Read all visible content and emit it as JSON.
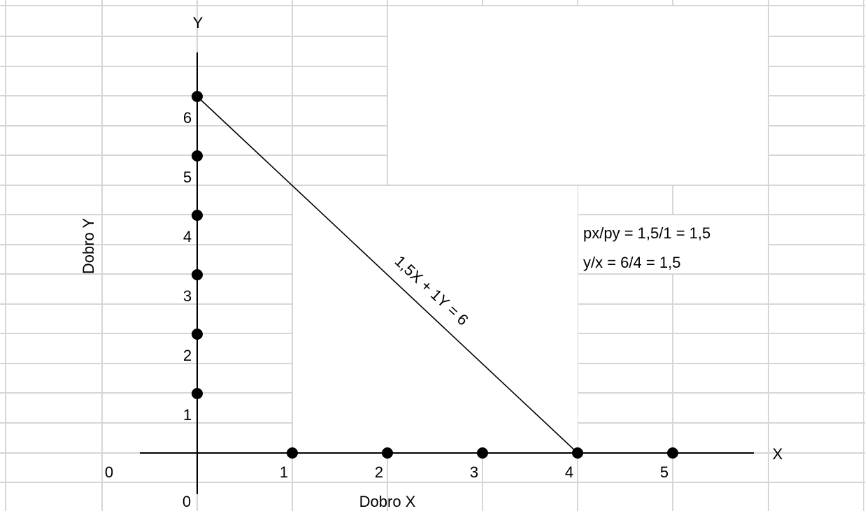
{
  "colors": {
    "grid": "#d6d6d6",
    "axis": "#000000",
    "line": "#000000",
    "point": "#000000",
    "background": "#ffffff"
  },
  "chart_data": {
    "type": "scatter",
    "title": "",
    "xlabel": "Dobro X",
    "ylabel": "Dobro Y",
    "x_axis_letter": "X",
    "y_axis_letter": "Y",
    "origin_labels": [
      "0",
      "0"
    ],
    "x_ticks": [
      "1",
      "2",
      "3",
      "4",
      "5"
    ],
    "y_ticks": [
      "1",
      "2",
      "3",
      "4",
      "5",
      "6"
    ],
    "xlim": [
      0,
      5
    ],
    "ylim": [
      0,
      6
    ],
    "series": [
      {
        "points_x_axis": [
          [
            1,
            0
          ],
          [
            2,
            0
          ],
          [
            3,
            0
          ],
          [
            4,
            0
          ],
          [
            5,
            0
          ]
        ]
      },
      {
        "points_y_axis": [
          [
            0,
            1
          ],
          [
            0,
            2
          ],
          [
            0,
            3
          ],
          [
            0,
            4
          ],
          [
            0,
            5
          ],
          [
            0,
            6
          ]
        ]
      }
    ],
    "budget_line": {
      "from": [
        0,
        6
      ],
      "to": [
        4,
        0
      ],
      "label": "1,5X + 1Y = 6"
    },
    "annotations": [
      "px/py = 1,5/1 = 1,5",
      "y/x = 6/4 = 1,5"
    ]
  }
}
